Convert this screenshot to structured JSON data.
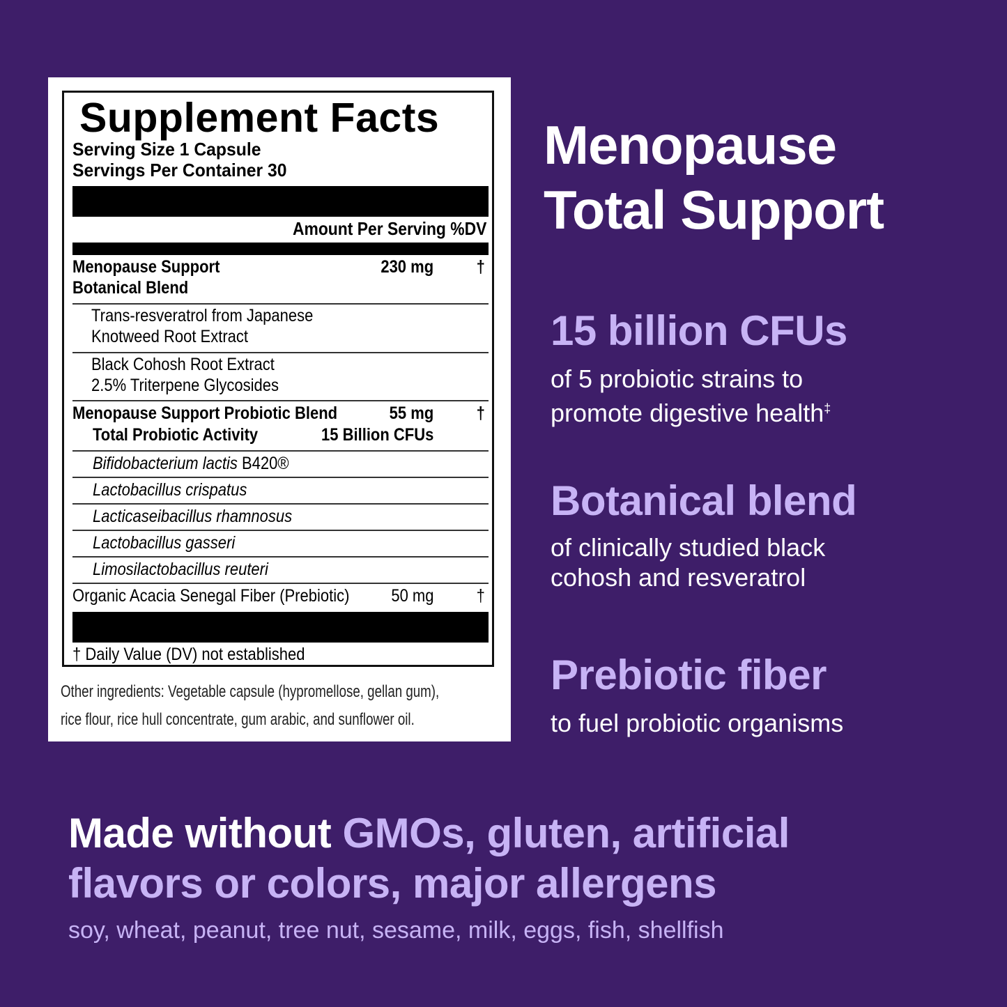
{
  "label": {
    "title": "Supplement Facts",
    "serving_size": "Serving Size  1 Capsule",
    "servings_per_container": "Servings Per Container  30",
    "amount_header": "Amount Per Serving %DV",
    "rows": [
      {
        "name": "Menopause Support",
        "name2": "Botanical Blend",
        "amount": "230 mg",
        "dv": "†"
      },
      {
        "name": "Trans-resveratrol from Japanese",
        "name2": "Knotweed Root Extract"
      },
      {
        "name": "Black Cohosh Root Extract",
        "name2": "2.5% Triterpene Glycosides"
      },
      {
        "name": "Menopause Support Probiotic Blend",
        "amount": "55 mg",
        "dv": "†",
        "sub": "Total Probiotic Activity",
        "sub_amount": "15 Billion CFUs"
      },
      {
        "name": "Bifidobacterium lactis",
        "suffix": "B420®"
      },
      {
        "name": "Lactobacillus crispatus"
      },
      {
        "name": "Lacticaseibacillus rhamnosus"
      },
      {
        "name": "Lactobacillus gasseri"
      },
      {
        "name": "Limosilactobacillus reuteri"
      },
      {
        "name": "Organic Acacia Senegal Fiber (Prebiotic)",
        "amount": "50 mg",
        "dv": "†"
      }
    ],
    "footnote": "† Daily Value (DV) not established",
    "other_ingredients_1": "Other ingredients: Vegetable capsule (hypromellose, gellan gum),",
    "other_ingredients_2": "rice flour, rice hull concentrate, gum arabic, and sunflower oil."
  },
  "headline": {
    "line1": "Menopause",
    "line2": "Total Support"
  },
  "features": [
    {
      "title": "15 billion CFUs",
      "desc1": "of 5 probiotic strains to",
      "desc2": "promote digestive health",
      "mark": "‡"
    },
    {
      "title": "Botanical blend",
      "desc1": "of clinically studied black",
      "desc2": "cohosh and resveratrol"
    },
    {
      "title": "Prebiotic fiber",
      "desc1": "to fuel probiotic organisms"
    }
  ],
  "bottom": {
    "lead": "Made without ",
    "highlight1": "GMOs, gluten, artificial",
    "highlight2": "flavors or colors, major allergens",
    "allergens": "soy, wheat, peanut, tree nut, sesame, milk, eggs, fish, shellfish"
  },
  "colors": {
    "background": "#3e1e69",
    "accent": "#c7b3f5",
    "text": "#ffffff"
  }
}
